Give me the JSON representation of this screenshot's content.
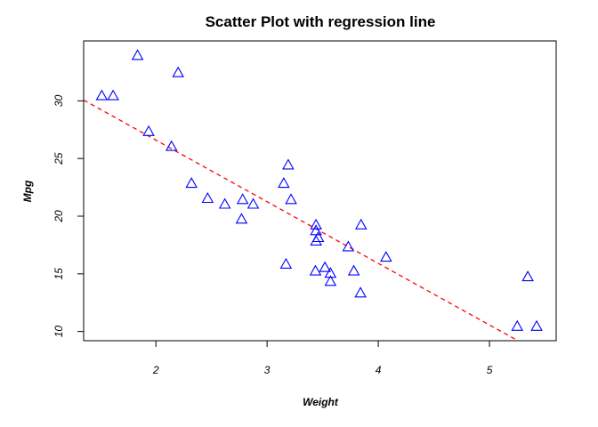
{
  "chart_data": {
    "type": "scatter",
    "title": "Scatter Plot with regression line",
    "xlabel": "Weight",
    "ylabel": "Mpg",
    "xlim": [
      1.35,
      5.6
    ],
    "ylim": [
      9.2,
      35.2
    ],
    "x_ticks": [
      2,
      3,
      4,
      5
    ],
    "y_ticks": [
      10,
      15,
      20,
      25,
      30
    ],
    "grid": false,
    "marker": "open-triangle",
    "point_color": "#0000ff",
    "series": [
      {
        "x": [
          2.62,
          2.875,
          2.32,
          3.215,
          3.44,
          3.46,
          3.57,
          3.19,
          3.15,
          3.44,
          3.44,
          4.07,
          3.73,
          3.78,
          5.25,
          5.424,
          5.345,
          2.2,
          1.615,
          1.835,
          2.465,
          3.52,
          3.435,
          3.84,
          3.845,
          1.935,
          2.14,
          1.513,
          3.17,
          2.77,
          3.57,
          2.78
        ],
        "y": [
          21.0,
          21.0,
          22.8,
          21.4,
          18.7,
          18.1,
          14.3,
          24.4,
          22.8,
          19.2,
          17.8,
          16.4,
          17.3,
          15.2,
          10.4,
          10.4,
          14.7,
          32.4,
          30.4,
          33.9,
          21.5,
          15.5,
          15.2,
          13.3,
          19.2,
          27.3,
          26.0,
          30.4,
          15.8,
          19.7,
          15.0,
          21.4
        ]
      }
    ],
    "regression_line": {
      "intercept": 37.285,
      "slope": -5.344,
      "color": "#ff0000",
      "style": "dashed"
    }
  }
}
